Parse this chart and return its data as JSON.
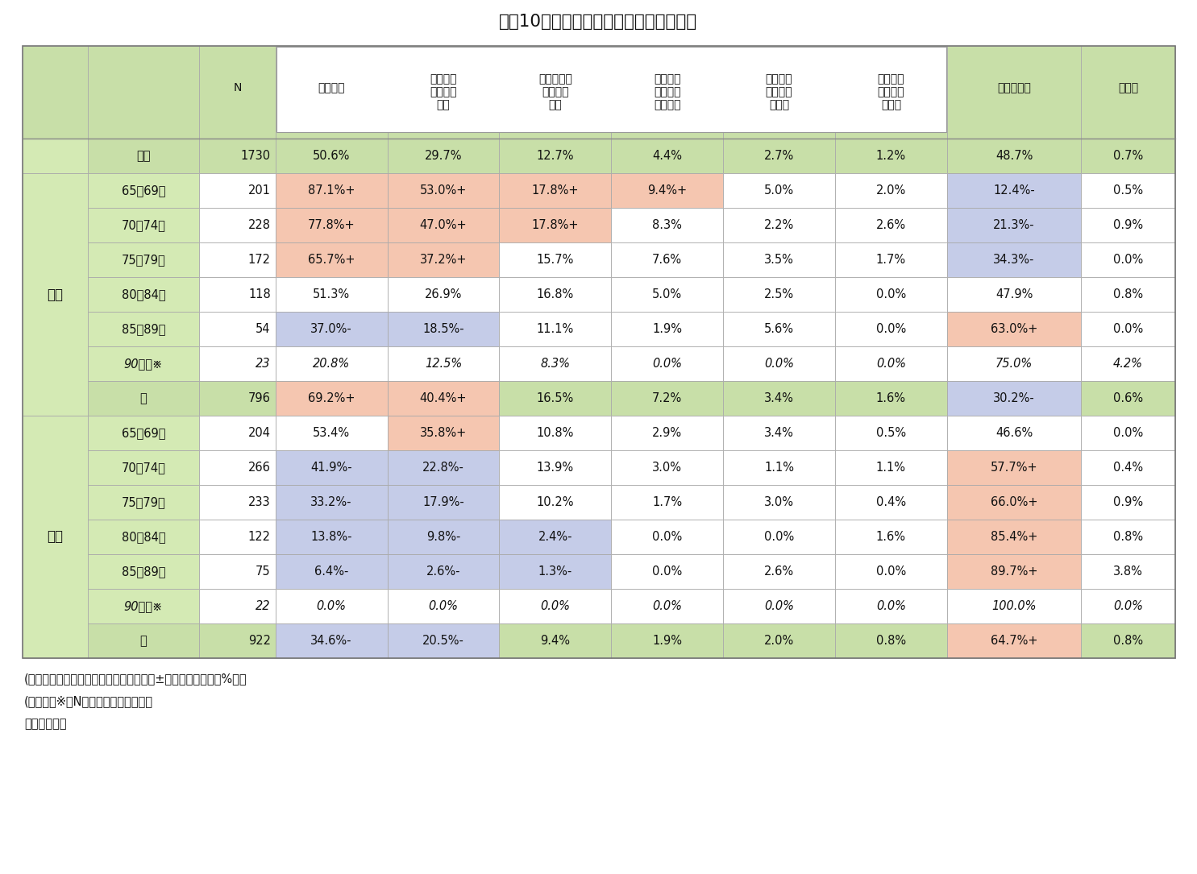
{
  "title": "図表10　性・年齢階級別にみた運転頻度",
  "rows": [
    [
      "",
      "全体",
      "1730",
      "50.6%",
      "29.7%",
      "12.7%",
      "4.4%",
      "2.7%",
      "1.2%",
      "48.7%",
      "0.7%"
    ],
    [
      "男性",
      "65～69歳",
      "201",
      "87.1%+",
      "53.0%+",
      "17.8%+",
      "9.4%+",
      "5.0%",
      "2.0%",
      "12.4%-",
      "0.5%"
    ],
    [
      "男性",
      "70～74歳",
      "228",
      "77.8%+",
      "47.0%+",
      "17.8%+",
      "8.3%",
      "2.2%",
      "2.6%",
      "21.3%-",
      "0.9%"
    ],
    [
      "男性",
      "75～79歳",
      "172",
      "65.7%+",
      "37.2%+",
      "15.7%",
      "7.6%",
      "3.5%",
      "1.7%",
      "34.3%-",
      "0.0%"
    ],
    [
      "男性",
      "80～84歳",
      "118",
      "51.3%",
      "26.9%",
      "16.8%",
      "5.0%",
      "2.5%",
      "0.0%",
      "47.9%",
      "0.8%"
    ],
    [
      "男性",
      "85～89歳",
      "54",
      "37.0%-",
      "18.5%-",
      "11.1%",
      "1.9%",
      "5.6%",
      "0.0%",
      "63.0%+",
      "0.0%"
    ],
    [
      "男性",
      "90歳～※",
      "23",
      "20.8%",
      "12.5%",
      "8.3%",
      "0.0%",
      "0.0%",
      "0.0%",
      "75.0%",
      "4.2%"
    ],
    [
      "男性",
      "計",
      "796",
      "69.2%+",
      "40.4%+",
      "16.5%",
      "7.2%",
      "3.4%",
      "1.6%",
      "30.2%-",
      "0.6%"
    ],
    [
      "女性",
      "65～69歳",
      "204",
      "53.4%",
      "35.8%+",
      "10.8%",
      "2.9%",
      "3.4%",
      "0.5%",
      "46.6%",
      "0.0%"
    ],
    [
      "女性",
      "70～74歳",
      "266",
      "41.9%-",
      "22.8%-",
      "13.9%",
      "3.0%",
      "1.1%",
      "1.1%",
      "57.7%+",
      "0.4%"
    ],
    [
      "女性",
      "75～79歳",
      "233",
      "33.2%-",
      "17.9%-",
      "10.2%",
      "1.7%",
      "3.0%",
      "0.4%",
      "66.0%+",
      "0.9%"
    ],
    [
      "女性",
      "80～84歳",
      "122",
      "13.8%-",
      "9.8%-",
      "2.4%-",
      "0.0%",
      "0.0%",
      "1.6%",
      "85.4%+",
      "0.8%"
    ],
    [
      "女性",
      "85～89歳",
      "75",
      "6.4%-",
      "2.6%-",
      "1.3%-",
      "0.0%",
      "2.6%",
      "0.0%",
      "89.7%+",
      "3.8%"
    ],
    [
      "女性",
      "90歳～※",
      "22",
      "0.0%",
      "0.0%",
      "0.0%",
      "0.0%",
      "0.0%",
      "0.0%",
      "100.0%",
      "0.0%"
    ],
    [
      "女性",
      "計",
      "922",
      "34.6%-",
      "20.5%-",
      "9.4%",
      "1.9%",
      "2.0%",
      "0.8%",
      "64.7%+",
      "0.8%"
    ]
  ],
  "cell_bg": {
    "1_3": "#f5c6b0",
    "1_4": "#f5c6b0",
    "1_5": "#f5c6b0",
    "1_6": "#f5c6b0",
    "1_9": "#c5cce8",
    "2_3": "#f5c6b0",
    "2_4": "#f5c6b0",
    "2_5": "#f5c6b0",
    "2_9": "#c5cce8",
    "3_3": "#f5c6b0",
    "3_4": "#f5c6b0",
    "3_9": "#c5cce8",
    "5_3": "#c5cce8",
    "5_4": "#c5cce8",
    "5_9": "#f5c6b0",
    "7_3": "#f5c6b0",
    "7_4": "#f5c6b0",
    "7_9": "#c5cce8",
    "8_4": "#f5c6b0",
    "9_3": "#c5cce8",
    "9_4": "#c5cce8",
    "9_9": "#f5c6b0",
    "10_3": "#c5cce8",
    "10_4": "#c5cce8",
    "10_9": "#f5c6b0",
    "11_3": "#c5cce8",
    "11_4": "#c5cce8",
    "11_5": "#c5cce8",
    "11_9": "#f5c6b0",
    "12_3": "#c5cce8",
    "12_4": "#c5cce8",
    "12_5": "#c5cce8",
    "12_9": "#f5c6b0",
    "14_3": "#c5cce8",
    "14_4": "#c5cce8",
    "14_9": "#f5c6b0"
  },
  "italic_rows": [
    6,
    13
  ],
  "green_dark": "#b8d898",
  "green_light": "#d4eab4",
  "green_mid": "#c8e0a8",
  "white": "#ffffff",
  "footer_text": "(備考１）全体より有意に差があるものに±表記（有意水準５%）。\n(備考２）※はNが小さいため参考値。\n（資料）同上"
}
